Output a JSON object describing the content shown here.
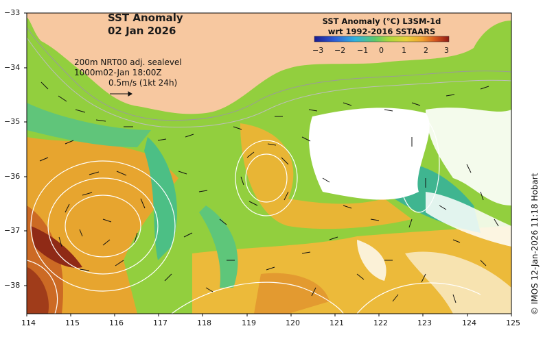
{
  "title": {
    "line1": "SST Anomaly",
    "line2": "02 Jan 2026"
  },
  "legend": {
    "title_line1": "SST Anomaly (°C) L3SM-1d",
    "title_line2": "wrt 1992-2016 SSTAARS",
    "ticks": [
      "−3",
      "−2",
      "−1",
      "0",
      "1",
      "2",
      "3"
    ],
    "colors": [
      "#1b1b8f",
      "#2e5bd6",
      "#2fb1e0",
      "#5cc96b",
      "#a8d83c",
      "#e6d23a",
      "#f0a22e",
      "#d5541f",
      "#8f1a12"
    ]
  },
  "info": {
    "line1": "200m  NRT00 adj. sealevel",
    "line2": "1000m02-Jan 18:00Z",
    "line3": "0.5m/s (1kt 24h)"
  },
  "credit": "© IMOS 12-Jan-2026 11:18 Hobart",
  "axes": {
    "x_labels": [
      "114",
      "115",
      "116",
      "117",
      "118",
      "119",
      "120",
      "121",
      "122",
      "123",
      "124",
      "125"
    ],
    "y_labels": [
      "−33",
      "−34",
      "−35",
      "−36",
      "−37",
      "−38"
    ],
    "lon_range": [
      114,
      125
    ],
    "lat_range": [
      -33,
      -38.5
    ]
  },
  "colors": {
    "land": "#f7c8a0",
    "no_data": "#ffffff",
    "warm": "#e8a030",
    "neutral": "#8ed24a"
  }
}
